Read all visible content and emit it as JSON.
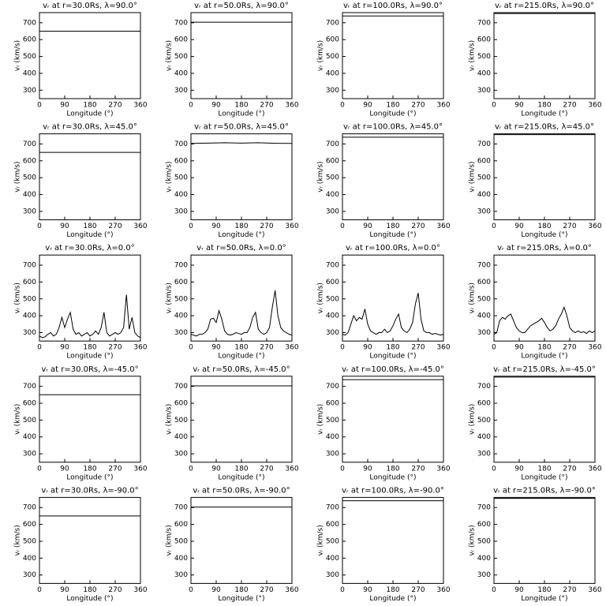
{
  "chart_data": [
    {
      "type": "line",
      "title": "vᵣ at r=30.0Rs, λ=90.0°",
      "xlabel": "Longitude (°)",
      "ylabel": "vᵣ (km/s)",
      "x": [
        0,
        360
      ],
      "values": [
        650,
        650
      ],
      "color": "#000000",
      "xlim": [
        0,
        360
      ],
      "ylim": [
        250,
        760
      ],
      "xticks": [
        0,
        90,
        180,
        270,
        360
      ],
      "yticks": [
        300,
        400,
        500,
        600,
        700
      ]
    },
    {
      "type": "line",
      "title": "vᵣ at r=50.0Rs, λ=90.0°",
      "xlabel": "Longitude (°)",
      "ylabel": "vᵣ (km/s)",
      "x": [
        0,
        360
      ],
      "values": [
        703,
        703
      ],
      "color": "#000000",
      "xlim": [
        0,
        360
      ],
      "ylim": [
        250,
        760
      ],
      "xticks": [
        0,
        90,
        180,
        270,
        360
      ],
      "yticks": [
        300,
        400,
        500,
        600,
        700
      ]
    },
    {
      "type": "line",
      "title": "vᵣ at r=100.0Rs, λ=90.0°",
      "xlabel": "Longitude (°)",
      "ylabel": "vᵣ (km/s)",
      "x": [
        0,
        360
      ],
      "values": [
        740,
        740
      ],
      "color": "#000000",
      "xlim": [
        0,
        360
      ],
      "ylim": [
        250,
        760
      ],
      "xticks": [
        0,
        90,
        180,
        270,
        360
      ],
      "yticks": [
        300,
        400,
        500,
        600,
        700
      ]
    },
    {
      "type": "line",
      "title": "vᵣ at r=215.0Rs, λ=90.0°",
      "xlabel": "Longitude (°)",
      "ylabel": "vᵣ (km/s)",
      "x": [
        0,
        360
      ],
      "values": [
        755,
        755
      ],
      "color": "#000000",
      "xlim": [
        0,
        360
      ],
      "ylim": [
        250,
        760
      ],
      "xticks": [
        0,
        90,
        180,
        270,
        360
      ],
      "yticks": [
        300,
        400,
        500,
        600,
        700
      ]
    },
    {
      "type": "line",
      "title": "vᵣ at r=30.0Rs, λ=45.0°",
      "xlabel": "Longitude (°)",
      "ylabel": "vᵣ (km/s)",
      "x": [
        0,
        360
      ],
      "values": [
        650,
        650
      ],
      "color": "#000000",
      "xlim": [
        0,
        360
      ],
      "ylim": [
        250,
        760
      ],
      "xticks": [
        0,
        90,
        180,
        270,
        360
      ],
      "yticks": [
        300,
        400,
        500,
        600,
        700
      ]
    },
    {
      "type": "line",
      "title": "vᵣ at r=50.0Rs, λ=45.0°",
      "xlabel": "Longitude (°)",
      "ylabel": "vᵣ (km/s)",
      "x": [
        0,
        60,
        120,
        180,
        240,
        300,
        360
      ],
      "values": [
        703,
        705,
        707,
        705,
        707,
        704,
        703
      ],
      "color": "#000000",
      "xlim": [
        0,
        360
      ],
      "ylim": [
        250,
        760
      ],
      "xticks": [
        0,
        90,
        180,
        270,
        360
      ],
      "yticks": [
        300,
        400,
        500,
        600,
        700
      ]
    },
    {
      "type": "line",
      "title": "vᵣ at r=100.0Rs, λ=45.0°",
      "xlabel": "Longitude (°)",
      "ylabel": "vᵣ (km/s)",
      "x": [
        0,
        360
      ],
      "values": [
        740,
        740
      ],
      "color": "#000000",
      "xlim": [
        0,
        360
      ],
      "ylim": [
        250,
        760
      ],
      "xticks": [
        0,
        90,
        180,
        270,
        360
      ],
      "yticks": [
        300,
        400,
        500,
        600,
        700
      ]
    },
    {
      "type": "line",
      "title": "vᵣ at r=215.0Rs, λ=45.0°",
      "xlabel": "Longitude (°)",
      "ylabel": "vᵣ (km/s)",
      "x": [
        0,
        360
      ],
      "values": [
        755,
        755
      ],
      "color": "#000000",
      "xlim": [
        0,
        360
      ],
      "ylim": [
        250,
        760
      ],
      "xticks": [
        0,
        90,
        180,
        270,
        360
      ],
      "yticks": [
        300,
        400,
        500,
        600,
        700
      ]
    },
    {
      "type": "line",
      "title": "vᵣ at r=30.0Rs, λ=0.0°",
      "xlabel": "Longitude (°)",
      "ylabel": "vᵣ (km/s)",
      "x": [
        0,
        10,
        20,
        30,
        40,
        50,
        60,
        70,
        80,
        90,
        100,
        110,
        120,
        130,
        140,
        150,
        160,
        170,
        180,
        190,
        200,
        210,
        220,
        230,
        240,
        250,
        260,
        270,
        280,
        290,
        300,
        310,
        320,
        330,
        340,
        350,
        360
      ],
      "values": [
        280,
        270,
        275,
        290,
        300,
        280,
        290,
        330,
        390,
        330,
        380,
        420,
        320,
        290,
        300,
        280,
        290,
        300,
        280,
        290,
        310,
        290,
        330,
        420,
        300,
        280,
        290,
        300,
        290,
        300,
        330,
        525,
        320,
        390,
        300,
        280,
        270
      ],
      "color": "#000000",
      "xlim": [
        0,
        360
      ],
      "ylim": [
        250,
        760
      ],
      "xticks": [
        0,
        90,
        180,
        270,
        360
      ],
      "yticks": [
        300,
        400,
        500,
        600,
        700
      ]
    },
    {
      "type": "line",
      "title": "vᵣ at r=50.0Rs, λ=0.0°",
      "xlabel": "Longitude (°)",
      "ylabel": "vᵣ (km/s)",
      "x": [
        0,
        10,
        20,
        30,
        40,
        50,
        60,
        70,
        80,
        90,
        100,
        110,
        120,
        130,
        140,
        150,
        160,
        170,
        180,
        190,
        200,
        210,
        220,
        230,
        240,
        250,
        260,
        270,
        280,
        290,
        300,
        310,
        320,
        330,
        340,
        350,
        360
      ],
      "values": [
        290,
        285,
        280,
        290,
        290,
        300,
        320,
        380,
        385,
        360,
        430,
        380,
        310,
        290,
        285,
        290,
        300,
        295,
        290,
        300,
        300,
        330,
        390,
        420,
        320,
        300,
        290,
        300,
        330,
        450,
        550,
        400,
        330,
        310,
        300,
        290,
        285
      ],
      "color": "#000000",
      "xlim": [
        0,
        360
      ],
      "ylim": [
        250,
        760
      ],
      "xticks": [
        0,
        90,
        180,
        270,
        360
      ],
      "yticks": [
        300,
        400,
        500,
        600,
        700
      ]
    },
    {
      "type": "line",
      "title": "vᵣ at r=100.0Rs, λ=0.0°",
      "xlabel": "Longitude (°)",
      "ylabel": "vᵣ (km/s)",
      "x": [
        0,
        10,
        20,
        30,
        40,
        50,
        60,
        70,
        80,
        90,
        100,
        110,
        120,
        130,
        140,
        150,
        160,
        170,
        180,
        190,
        200,
        210,
        220,
        230,
        240,
        250,
        260,
        270,
        280,
        290,
        300,
        310,
        320,
        330,
        340,
        350,
        360
      ],
      "values": [
        290,
        285,
        300,
        350,
        400,
        370,
        390,
        380,
        440,
        350,
        310,
        300,
        290,
        300,
        300,
        320,
        300,
        310,
        340,
        380,
        410,
        330,
        310,
        300,
        320,
        360,
        470,
        535,
        380,
        310,
        300,
        300,
        290,
        295,
        290,
        285,
        290
      ],
      "color": "#000000",
      "xlim": [
        0,
        360
      ],
      "ylim": [
        250,
        760
      ],
      "xticks": [
        0,
        90,
        180,
        270,
        360
      ],
      "yticks": [
        300,
        400,
        500,
        600,
        700
      ]
    },
    {
      "type": "line",
      "title": "vᵣ at r=215.0Rs, λ=0.0°",
      "xlabel": "Longitude (°)",
      "ylabel": "vᵣ (km/s)",
      "x": [
        0,
        10,
        20,
        30,
        40,
        50,
        60,
        70,
        80,
        90,
        100,
        110,
        120,
        130,
        140,
        150,
        160,
        170,
        180,
        190,
        200,
        210,
        220,
        230,
        240,
        250,
        260,
        270,
        280,
        290,
        300,
        310,
        320,
        330,
        340,
        350,
        360
      ],
      "values": [
        290,
        300,
        370,
        390,
        380,
        400,
        410,
        370,
        330,
        310,
        300,
        300,
        320,
        340,
        350,
        360,
        370,
        385,
        360,
        330,
        310,
        320,
        340,
        380,
        410,
        450,
        400,
        330,
        310,
        300,
        310,
        300,
        305,
        295,
        310,
        300,
        310
      ],
      "color": "#000000",
      "xlim": [
        0,
        360
      ],
      "ylim": [
        250,
        760
      ],
      "xticks": [
        0,
        90,
        180,
        270,
        360
      ],
      "yticks": [
        300,
        400,
        500,
        600,
        700
      ]
    },
    {
      "type": "line",
      "title": "vᵣ at r=30.0Rs, λ=-45.0°",
      "xlabel": "Longitude (°)",
      "ylabel": "vᵣ (km/s)",
      "x": [
        0,
        360
      ],
      "values": [
        650,
        650
      ],
      "color": "#000000",
      "xlim": [
        0,
        360
      ],
      "ylim": [
        250,
        760
      ],
      "xticks": [
        0,
        90,
        180,
        270,
        360
      ],
      "yticks": [
        300,
        400,
        500,
        600,
        700
      ]
    },
    {
      "type": "line",
      "title": "vᵣ at r=50.0Rs, λ=-45.0°",
      "xlabel": "Longitude (°)",
      "ylabel": "vᵣ (km/s)",
      "x": [
        0,
        360
      ],
      "values": [
        703,
        703
      ],
      "color": "#000000",
      "xlim": [
        0,
        360
      ],
      "ylim": [
        250,
        760
      ],
      "xticks": [
        0,
        90,
        180,
        270,
        360
      ],
      "yticks": [
        300,
        400,
        500,
        600,
        700
      ]
    },
    {
      "type": "line",
      "title": "vᵣ at r=100.0Rs, λ=-45.0°",
      "xlabel": "Longitude (°)",
      "ylabel": "vᵣ (km/s)",
      "x": [
        0,
        360
      ],
      "values": [
        740,
        740
      ],
      "color": "#000000",
      "xlim": [
        0,
        360
      ],
      "ylim": [
        250,
        760
      ],
      "xticks": [
        0,
        90,
        180,
        270,
        360
      ],
      "yticks": [
        300,
        400,
        500,
        600,
        700
      ]
    },
    {
      "type": "line",
      "title": "vᵣ at r=215.0Rs, λ=-45.0°",
      "xlabel": "Longitude (°)",
      "ylabel": "vᵣ (km/s)",
      "x": [
        0,
        360
      ],
      "values": [
        755,
        755
      ],
      "color": "#000000",
      "xlim": [
        0,
        360
      ],
      "ylim": [
        250,
        760
      ],
      "xticks": [
        0,
        90,
        180,
        270,
        360
      ],
      "yticks": [
        300,
        400,
        500,
        600,
        700
      ]
    },
    {
      "type": "line",
      "title": "vᵣ at r=30.0Rs, λ=-90.0°",
      "xlabel": "Longitude (°)",
      "ylabel": "vᵣ (km/s)",
      "x": [
        0,
        360
      ],
      "values": [
        650,
        650
      ],
      "color": "#000000",
      "xlim": [
        0,
        360
      ],
      "ylim": [
        250,
        760
      ],
      "xticks": [
        0,
        90,
        180,
        270,
        360
      ],
      "yticks": [
        300,
        400,
        500,
        600,
        700
      ]
    },
    {
      "type": "line",
      "title": "vᵣ at r=50.0Rs, λ=-90.0°",
      "xlabel": "Longitude (°)",
      "ylabel": "vᵣ (km/s)",
      "x": [
        0,
        360
      ],
      "values": [
        703,
        703
      ],
      "color": "#000000",
      "xlim": [
        0,
        360
      ],
      "ylim": [
        250,
        760
      ],
      "xticks": [
        0,
        90,
        180,
        270,
        360
      ],
      "yticks": [
        300,
        400,
        500,
        600,
        700
      ]
    },
    {
      "type": "line",
      "title": "vᵣ at r=100.0Rs, λ=-90.0°",
      "xlabel": "Longitude (°)",
      "ylabel": "vᵣ (km/s)",
      "x": [
        0,
        360
      ],
      "values": [
        740,
        740
      ],
      "color": "#000000",
      "xlim": [
        0,
        360
      ],
      "ylim": [
        250,
        760
      ],
      "xticks": [
        0,
        90,
        180,
        270,
        360
      ],
      "yticks": [
        300,
        400,
        500,
        600,
        700
      ]
    },
    {
      "type": "line",
      "title": "vᵣ at r=215.0Rs, λ=-90.0°",
      "xlabel": "Longitude (°)",
      "ylabel": "vᵣ (km/s)",
      "x": [
        0,
        360
      ],
      "values": [
        755,
        755
      ],
      "color": "#000000",
      "xlim": [
        0,
        360
      ],
      "ylim": [
        250,
        760
      ],
      "xticks": [
        0,
        90,
        180,
        270,
        360
      ],
      "yticks": [
        300,
        400,
        500,
        600,
        700
      ]
    }
  ]
}
